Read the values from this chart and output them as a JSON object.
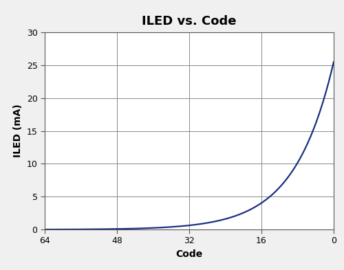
{
  "title": "ILED vs. Code",
  "xlabel": "Code",
  "ylabel": "ILED (mA)",
  "xlim": [
    64,
    0
  ],
  "ylim": [
    0,
    30
  ],
  "xticks": [
    64,
    48,
    32,
    16,
    0
  ],
  "yticks": [
    0,
    5,
    10,
    15,
    20,
    25,
    30
  ],
  "line_color": "#1a3080",
  "line_width": 1.6,
  "grid_color": "#888888",
  "bg_color": "#ffffff",
  "outer_bg": "#f0f0f0",
  "title_fontsize": 13,
  "label_fontsize": 10,
  "tick_fontsize": 9,
  "figsize": [
    5.0,
    3.93
  ],
  "dpi": 100,
  "curve_scale": 25.5,
  "curve_exponent_scale": 0.115
}
